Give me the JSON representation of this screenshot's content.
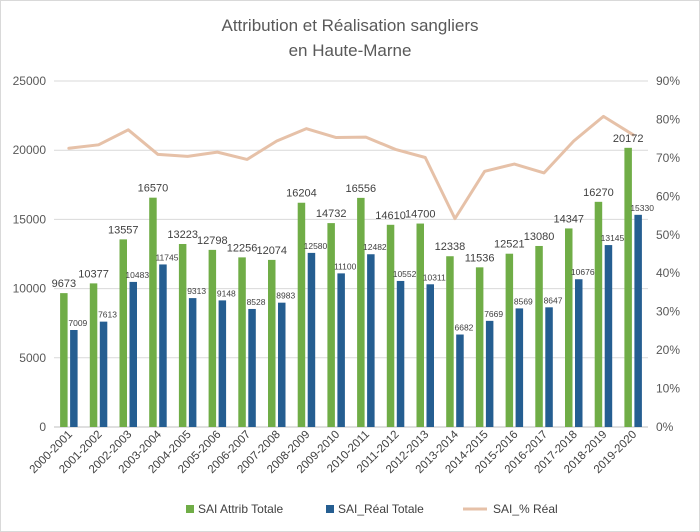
{
  "chart_data": {
    "type": "bar",
    "title": "Attribution et Réalisation sangliers",
    "subtitle": "en Haute-Marne",
    "categories": [
      "2000-2001",
      "2001-2002",
      "2002-2003",
      "2003-2004",
      "2004-2005",
      "2005-2006",
      "2006-2007",
      "2007-2008",
      "2008-2009",
      "2009-2010",
      "2010-2011",
      "2011-2012",
      "2012-2013",
      "2013-2014",
      "2014-2015",
      "2015-2016",
      "2016-2017",
      "2017-2018",
      "2018-2019",
      "2019-2020"
    ],
    "y_left": {
      "min": 0,
      "max": 25000,
      "ticks": [
        "0",
        "5000",
        "10000",
        "15000",
        "20000",
        "25000"
      ]
    },
    "y_right": {
      "min": 0,
      "max": 90,
      "ticks": [
        "0%",
        "10%",
        "20%",
        "30%",
        "40%",
        "50%",
        "60%",
        "70%",
        "80%",
        "90%"
      ]
    },
    "series": [
      {
        "name": "SAI Attrib Totale",
        "type": "bar",
        "axis": "left",
        "color": "#70ad47",
        "values": [
          9673,
          10377,
          13557,
          16570,
          13223,
          12798,
          12256,
          12074,
          16204,
          14732,
          16556,
          14610,
          14700,
          12338,
          11536,
          12521,
          13080,
          14347,
          16270,
          20172
        ],
        "labels": [
          "9673",
          "10377",
          "13557",
          "16570",
          "13223",
          "12798",
          "12256",
          "12074",
          "16204",
          "14732",
          "16556",
          "14610",
          "14700",
          "12338",
          "11536",
          "12521",
          "13080",
          "14347",
          "16270",
          "20172"
        ]
      },
      {
        "name": "SAI_Réal Totale",
        "type": "bar",
        "axis": "left",
        "color": "#255e91",
        "values": [
          7009,
          7613,
          10483,
          11745,
          9313,
          9148,
          8528,
          8983,
          12580,
          11100,
          12482,
          10552,
          10311,
          6682,
          7669,
          8569,
          8647,
          10676,
          13145,
          15330
        ],
        "labels": [
          "7009",
          "7613",
          "10483",
          "11745",
          "9313",
          "9148",
          "8528",
          "8983",
          "12580",
          "11100",
          "12482",
          "10552",
          "10311",
          "6682",
          "7669",
          "8569",
          "8647",
          "10676",
          "13145",
          "15330"
        ]
      },
      {
        "name": "SAI_% Réal",
        "type": "line",
        "axis": "right",
        "color": "#e6c1a8",
        "values": [
          72.5,
          73.4,
          77.3,
          70.9,
          70.4,
          71.5,
          69.6,
          74.4,
          77.6,
          75.3,
          75.4,
          72.2,
          70.1,
          54.2,
          66.5,
          68.4,
          66.1,
          74.4,
          80.8,
          76.0
        ]
      }
    ],
    "grid": true,
    "legend": "bottom"
  }
}
